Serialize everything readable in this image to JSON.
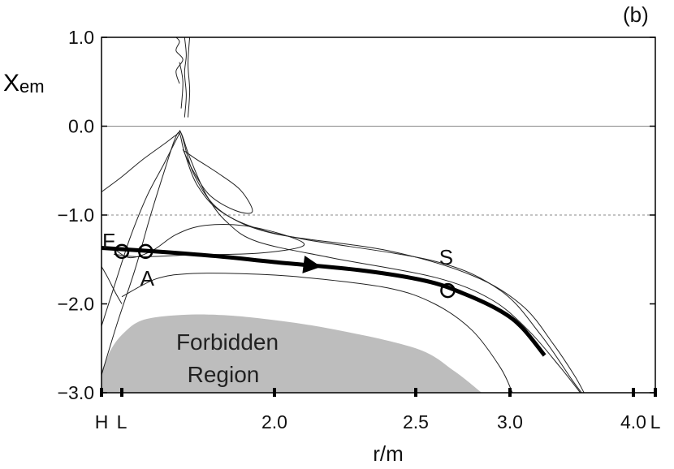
{
  "chart_data": {
    "type": "line",
    "panel_label": "(b)",
    "xlabel": "r/m",
    "ylabel_main": "X",
    "ylabel_sub": "em",
    "ylim": [
      -3.0,
      1.0
    ],
    "grid": false,
    "y_ticks": [
      {
        "value": 1.0,
        "label": "1.0"
      },
      {
        "value": 0.0,
        "label": "0.0"
      },
      {
        "value": -1.0,
        "label": "−1.0"
      },
      {
        "value": -2.0,
        "label": "−2.0"
      },
      {
        "value": -3.0,
        "label": "−3.0"
      }
    ],
    "x_ticks": [
      {
        "value": 1.0,
        "label": "H"
      },
      {
        "value": 1.1,
        "label": "L"
      },
      {
        "value": 2.0,
        "label": "2.0"
      },
      {
        "value": 2.5,
        "label": "2.5"
      },
      {
        "value": 3.0,
        "label": "3.0"
      },
      {
        "value": 4.0,
        "label": "4.0"
      },
      {
        "value": 4.35,
        "label": "L"
      }
    ],
    "reference_lines": [
      {
        "y": 0.0,
        "style": "solid"
      },
      {
        "y": -1.0,
        "style": "dashed"
      }
    ],
    "region": {
      "label_lines": [
        "Forbidden",
        "Region"
      ],
      "color": "#bdbdbd",
      "boundary": [
        [
          1.0,
          -3.0
        ],
        [
          1.0,
          -2.78
        ],
        [
          1.02,
          -2.65
        ],
        [
          1.05,
          -2.5
        ],
        [
          1.1,
          -2.35
        ],
        [
          1.2,
          -2.2
        ],
        [
          1.35,
          -2.14
        ],
        [
          1.6,
          -2.12
        ],
        [
          1.9,
          -2.16
        ],
        [
          2.2,
          -2.28
        ],
        [
          2.5,
          -2.5
        ],
        [
          2.7,
          -2.75
        ],
        [
          2.85,
          -3.0
        ]
      ]
    },
    "trajectory": {
      "color": "#000000",
      "points": [
        [
          1.0,
          -1.37
        ],
        [
          1.3,
          -1.41
        ],
        [
          1.7,
          -1.47
        ],
        [
          2.0,
          -1.53
        ],
        [
          2.3,
          -1.62
        ],
        [
          2.55,
          -1.74
        ],
        [
          2.75,
          -1.88
        ],
        [
          2.95,
          -2.08
        ],
        [
          3.1,
          -2.27
        ],
        [
          3.28,
          -2.58
        ]
      ],
      "arrow_at": [
        2.2,
        -1.6
      ]
    },
    "separatrices": [
      [
        [
          1.0,
          -2.8
        ],
        [
          1.08,
          -2.2
        ],
        [
          1.18,
          -1.6
        ],
        [
          1.27,
          -1.0
        ],
        [
          1.36,
          -0.45
        ],
        [
          1.41,
          -0.16
        ],
        [
          1.44,
          -0.08
        ],
        [
          1.47,
          -0.3
        ],
        [
          1.55,
          -0.68
        ],
        [
          1.7,
          -0.98
        ],
        [
          2.0,
          -1.21
        ],
        [
          2.4,
          -1.4
        ],
        [
          2.8,
          -1.68
        ],
        [
          3.1,
          -2.02
        ],
        [
          3.35,
          -2.45
        ],
        [
          3.52,
          -2.8
        ],
        [
          3.6,
          -3.0
        ]
      ],
      [
        [
          1.0,
          -0.74
        ],
        [
          1.1,
          -0.57
        ],
        [
          1.22,
          -0.38
        ],
        [
          1.35,
          -0.2
        ],
        [
          1.42,
          -0.1
        ],
        [
          1.45,
          -0.08
        ],
        [
          1.5,
          -0.35
        ],
        [
          1.6,
          -0.78
        ],
        [
          1.72,
          -1.08
        ],
        [
          1.9,
          -1.3
        ],
        [
          2.2,
          -1.48
        ],
        [
          2.6,
          -1.7
        ],
        [
          2.9,
          -1.95
        ],
        [
          3.15,
          -2.3
        ],
        [
          3.4,
          -2.7
        ],
        [
          3.57,
          -3.0
        ]
      ],
      [
        [
          1.0,
          -2.25
        ],
        [
          1.07,
          -1.75
        ],
        [
          1.15,
          -1.25
        ],
        [
          1.25,
          -0.78
        ],
        [
          1.35,
          -0.42
        ],
        [
          1.43,
          -0.12
        ],
        [
          1.45,
          -0.08
        ],
        [
          1.52,
          -0.52
        ],
        [
          1.65,
          -0.9
        ],
        [
          1.85,
          -1.12
        ],
        [
          2.1,
          -1.27
        ],
        [
          2.6,
          -1.52
        ],
        [
          2.95,
          -1.85
        ],
        [
          3.25,
          -2.35
        ],
        [
          3.5,
          -2.85
        ],
        [
          3.58,
          -3.0
        ]
      ],
      [
        [
          1.06,
          -1.38
        ],
        [
          1.15,
          -1.48
        ],
        [
          1.28,
          -1.4
        ],
        [
          1.42,
          -1.22
        ],
        [
          1.58,
          -1.12
        ],
        [
          1.82,
          -1.12
        ],
        [
          2.05,
          -1.24
        ],
        [
          2.1,
          -1.35
        ],
        [
          1.9,
          -1.43
        ],
        [
          1.5,
          -1.45
        ],
        [
          1.2,
          -1.47
        ],
        [
          1.06,
          -1.44
        ]
      ],
      [
        [
          1.46,
          -0.26
        ],
        [
          1.52,
          -0.5
        ],
        [
          1.62,
          -0.78
        ],
        [
          1.77,
          -0.95
        ],
        [
          1.87,
          -0.96
        ],
        [
          1.8,
          -0.72
        ],
        [
          1.66,
          -0.52
        ],
        [
          1.53,
          -0.36
        ],
        [
          1.47,
          -0.28
        ]
      ],
      [
        [
          1.0,
          -1.58
        ],
        [
          1.03,
          -1.7
        ],
        [
          1.07,
          -1.88
        ],
        [
          1.1,
          -2.0
        ]
      ],
      [
        [
          1.1,
          -1.92
        ],
        [
          1.3,
          -1.72
        ],
        [
          1.5,
          -1.66
        ],
        [
          1.8,
          -1.66
        ],
        [
          2.1,
          -1.7
        ],
        [
          2.4,
          -1.82
        ],
        [
          2.6,
          -2.0
        ],
        [
          2.8,
          -2.3
        ],
        [
          2.95,
          -2.72
        ],
        [
          3.02,
          -3.0
        ]
      ],
      [
        [
          1.44,
          0.48
        ],
        [
          1.42,
          0.62
        ],
        [
          1.46,
          0.75
        ],
        [
          1.42,
          0.85
        ],
        [
          1.44,
          0.95
        ],
        [
          1.42,
          1.0
        ]
      ],
      [
        [
          1.47,
          0.1
        ],
        [
          1.48,
          0.35
        ],
        [
          1.47,
          0.6
        ],
        [
          1.48,
          0.8
        ],
        [
          1.47,
          1.0
        ]
      ],
      [
        [
          1.45,
          0.2
        ],
        [
          1.46,
          0.5
        ],
        [
          1.44,
          0.72
        ]
      ],
      [
        [
          1.49,
          0.1
        ],
        [
          1.5,
          0.4
        ],
        [
          1.49,
          0.7
        ],
        [
          1.5,
          1.0
        ]
      ]
    ],
    "points": [
      {
        "label": "F",
        "x": 1.1,
        "y": -1.41
      },
      {
        "label": "",
        "x": 1.24,
        "y": -1.41
      },
      {
        "label": "A",
        "x": 1.24,
        "y": -1.41
      },
      {
        "label": "S",
        "x": 2.67,
        "y": -1.85
      }
    ]
  }
}
